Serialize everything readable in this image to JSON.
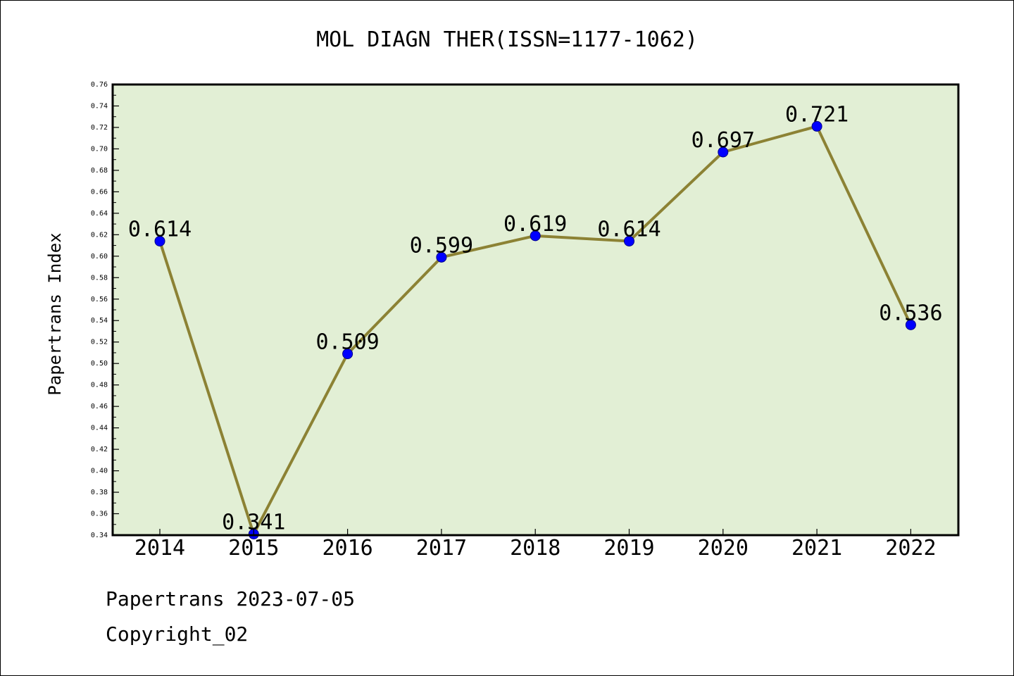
{
  "chart_data": {
    "type": "line",
    "title": "MOL DIAGN THER(ISSN=1177-1062)",
    "xlabel": "",
    "ylabel": "Papertrans Index",
    "categories": [
      "2014",
      "2015",
      "2016",
      "2017",
      "2018",
      "2019",
      "2020",
      "2021",
      "2022"
    ],
    "series": [
      {
        "values": [
          0.614,
          0.341,
          0.509,
          0.599,
          0.619,
          0.614,
          0.697,
          0.721,
          0.536
        ],
        "data_labels": [
          "0.614",
          "0.341",
          "0.509",
          "0.599",
          "0.619",
          "0.614",
          "0.697",
          "0.721",
          "0.536"
        ]
      }
    ],
    "ylim": [
      0.34,
      0.76
    ],
    "yticks": [
      "0.34",
      "0.36",
      "0.38",
      "0.40",
      "0.42",
      "0.44",
      "0.46",
      "0.48",
      "0.50",
      "0.52",
      "0.54",
      "0.56",
      "0.58",
      "0.60",
      "0.62",
      "0.64",
      "0.66",
      "0.68",
      "0.70",
      "0.72",
      "0.74",
      "0.76"
    ],
    "grid": false,
    "colors": {
      "plot_background": "#e2efd5",
      "line": "#8c8234",
      "marker": "#0000ff",
      "marker_edge": "#00008b"
    }
  },
  "footer": {
    "line1": "Papertrans 2023-07-05",
    "line2": "Copyright_02"
  }
}
